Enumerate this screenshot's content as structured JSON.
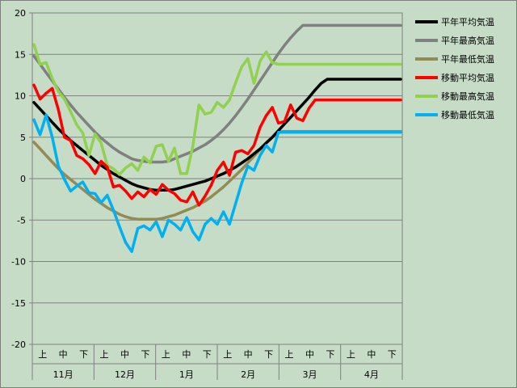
{
  "chart_data": {
    "type": "line",
    "title": "",
    "xlabel": "",
    "ylabel": "",
    "ylim": [
      -20,
      20
    ],
    "yticks": [
      20,
      15,
      10,
      5,
      0,
      -5,
      -10,
      -15,
      -20
    ],
    "grid": true,
    "legend_position": "right",
    "months": [
      "11月",
      "12月",
      "1月",
      "2月",
      "3月",
      "4月"
    ],
    "periods": [
      "上",
      "中",
      "下"
    ],
    "x_positions": [
      0,
      1,
      2,
      3,
      4,
      5,
      6,
      7,
      8,
      9,
      10,
      11,
      12,
      13,
      14,
      15,
      16,
      17,
      18,
      19,
      20,
      21,
      22,
      23,
      24,
      25,
      26,
      27,
      28,
      29,
      30,
      31,
      32,
      33,
      34,
      35,
      36,
      37,
      38,
      39,
      40,
      41,
      42,
      43,
      44,
      45,
      46,
      47,
      48,
      49,
      50,
      51,
      52,
      53,
      54,
      55,
      56,
      57,
      58,
      59,
      60
    ],
    "series": [
      {
        "name": "平年平均気温",
        "color": "#000000",
        "values": [
          9.2,
          8.4,
          7.6,
          6.8,
          6.0,
          5.3,
          4.6,
          4.0,
          3.4,
          2.8,
          2.2,
          1.6,
          1.1,
          0.6,
          0.2,
          -0.2,
          -0.6,
          -0.9,
          -1.1,
          -1.3,
          -1.4,
          -1.4,
          -1.4,
          -1.3,
          -1.1,
          -0.9,
          -0.7,
          -0.5,
          -0.3,
          0.0,
          0.3,
          0.6,
          1.0,
          1.4,
          1.9,
          2.4,
          3.0,
          3.6,
          4.3,
          5.0,
          5.8,
          6.6,
          7.4,
          8.2,
          9.0,
          9.8,
          10.7,
          11.5,
          12.0,
          12.0,
          12.0,
          12.0,
          12.0,
          12.0,
          12.0,
          12.0,
          12.0,
          12.0,
          12.0,
          12.0,
          12.0
        ]
      },
      {
        "name": "平年最高気温",
        "color": "#808080",
        "values": [
          14.8,
          13.8,
          12.8,
          11.8,
          10.8,
          9.8,
          8.9,
          8.0,
          7.2,
          6.4,
          5.6,
          4.9,
          4.3,
          3.7,
          3.2,
          2.8,
          2.4,
          2.2,
          2.1,
          2.0,
          2.0,
          2.0,
          2.1,
          2.4,
          2.7,
          3.0,
          3.3,
          3.7,
          4.1,
          4.6,
          5.2,
          5.9,
          6.7,
          7.6,
          8.6,
          9.6,
          10.7,
          11.8,
          12.9,
          14.0,
          15.1,
          16.1,
          17.0,
          17.8,
          18.5,
          18.5,
          18.5,
          18.5,
          18.5,
          18.5,
          18.5,
          18.5,
          18.5,
          18.5,
          18.5,
          18.5,
          18.5,
          18.5,
          18.5,
          18.5,
          18.5
        ]
      },
      {
        "name": "平年最低気温",
        "color": "#948a54",
        "values": [
          4.4,
          3.6,
          2.8,
          2.0,
          1.2,
          0.5,
          -0.1,
          -0.7,
          -1.3,
          -1.9,
          -2.5,
          -3.0,
          -3.5,
          -3.9,
          -4.3,
          -4.6,
          -4.8,
          -4.9,
          -4.9,
          -4.9,
          -4.9,
          -4.8,
          -4.6,
          -4.4,
          -4.1,
          -3.8,
          -3.5,
          -3.1,
          -2.7,
          -2.2,
          -1.6,
          -1.0,
          -0.3,
          0.4,
          1.1,
          1.9,
          2.7,
          3.5,
          4.3,
          5.0,
          5.7,
          5.7,
          5.7,
          5.7,
          5.7,
          5.7,
          5.7,
          5.7,
          5.7,
          5.7,
          5.7,
          5.7,
          5.7,
          5.7,
          5.7,
          5.7,
          5.7,
          5.7,
          5.7,
          5.7,
          5.7
        ]
      },
      {
        "name": "移動平均気温",
        "color": "#ff0000",
        "values": [
          11.3,
          9.6,
          10.3,
          10.9,
          8.3,
          5.0,
          4.6,
          2.8,
          2.4,
          1.7,
          0.6,
          2.1,
          1.4,
          -1.0,
          -0.8,
          -1.5,
          -2.4,
          -1.6,
          -2.2,
          -1.3,
          -1.9,
          -0.7,
          -1.4,
          -1.8,
          -2.6,
          -2.8,
          -1.6,
          -3.2,
          -2.1,
          -0.8,
          1.0,
          2.0,
          0.4,
          3.2,
          3.4,
          3.0,
          4.0,
          6.2,
          7.6,
          8.6,
          6.7,
          6.9,
          8.9,
          7.3,
          7.0,
          8.5,
          9.5,
          9.5,
          9.5,
          9.5,
          9.5,
          9.5,
          9.5,
          9.5,
          9.5,
          9.5,
          9.5,
          9.5,
          9.5,
          9.5,
          9.5
        ]
      },
      {
        "name": "移動最高気温",
        "color": "#92d050",
        "values": [
          16.2,
          13.8,
          14.0,
          12.1,
          10.5,
          9.6,
          8.1,
          6.5,
          5.5,
          2.8,
          5.4,
          4.3,
          1.6,
          1.2,
          0.5,
          1.3,
          1.8,
          1.0,
          2.6,
          1.9,
          3.9,
          4.1,
          2.1,
          3.7,
          0.6,
          0.6,
          3.9,
          8.9,
          7.8,
          8.0,
          9.2,
          8.6,
          9.5,
          11.6,
          13.5,
          14.5,
          11.5,
          14.2,
          15.3,
          14.0,
          13.8,
          13.8,
          13.8,
          13.8,
          13.8,
          13.8,
          13.8,
          13.8,
          13.8,
          13.8,
          13.8,
          13.8,
          13.8,
          13.8,
          13.8,
          13.8,
          13.8,
          13.8,
          13.8,
          13.8,
          13.8
        ]
      },
      {
        "name": "移動最低気温",
        "color": "#00b0f0",
        "values": [
          7.1,
          5.3,
          7.7,
          5.0,
          1.5,
          -0.1,
          -1.5,
          -0.9,
          -0.4,
          -1.7,
          -1.8,
          -2.9,
          -2.0,
          -3.8,
          -5.8,
          -7.7,
          -8.8,
          -6.0,
          -5.7,
          -6.2,
          -5.2,
          -7.0,
          -5.0,
          -5.5,
          -6.2,
          -4.7,
          -6.4,
          -7.4,
          -5.5,
          -4.8,
          -5.5,
          -4.0,
          -5.5,
          -3.0,
          -0.5,
          1.5,
          1.0,
          2.8,
          4.0,
          3.2,
          5.6,
          5.6,
          5.6,
          5.6,
          5.6,
          5.6,
          5.6,
          5.6,
          5.6,
          5.6,
          5.6,
          5.6,
          5.6,
          5.6,
          5.6,
          5.6,
          5.6,
          5.6,
          5.6,
          5.6,
          5.6
        ]
      }
    ]
  }
}
